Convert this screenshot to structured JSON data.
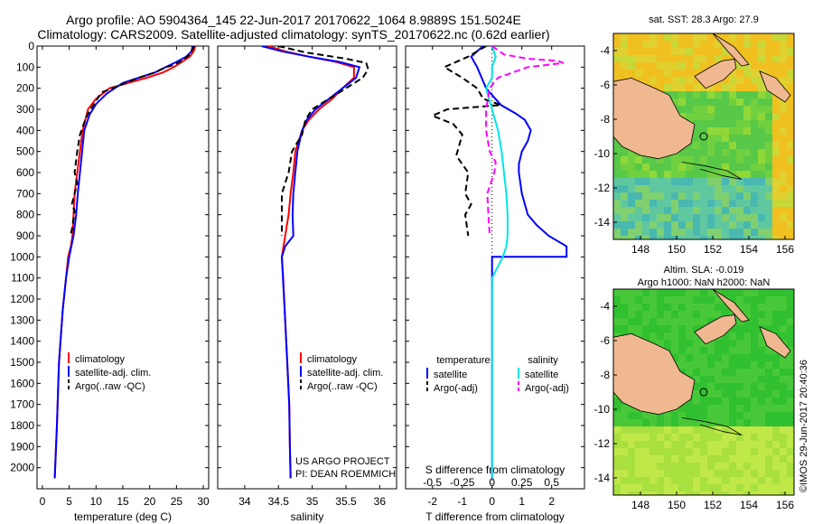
{
  "header": {
    "line1": "Argo profile: AO 5904364_145 22-Jun-2017 20170622_1064 8.9889S 151.5024E",
    "line2": "Climatology: CARS2009. Satellite-adjusted climatology: synTS_20170622.nc (0.62d earlier)"
  },
  "colors": {
    "climatology": "#ff0000",
    "satellite": "#0000ff",
    "argo": "#000000",
    "sal_satellite": "#00e5e5",
    "sal_argo": "#ff00ff",
    "land": "#f0b890"
  },
  "credits": {
    "project": "US ARGO PROJECT",
    "pi": "PI: DEAN ROEMMICH",
    "imos": "©IMOS 29-Jun-2017 20:40:36"
  },
  "chart_data": [
    {
      "type": "line",
      "name": "temperature-profile",
      "xlabel": "temperature (deg C)",
      "ylabel": "",
      "xlim": [
        -1,
        31
      ],
      "ylim": [
        2100,
        0
      ],
      "xticks": [
        0,
        5,
        10,
        15,
        20,
        25,
        30
      ],
      "yticks": [
        0,
        100,
        200,
        300,
        400,
        500,
        600,
        700,
        800,
        900,
        1000,
        1100,
        1200,
        1300,
        1400,
        1500,
        1600,
        1700,
        1800,
        1900,
        2000
      ],
      "legend": [
        "climatology",
        "satellite-adj. clim.",
        "Argo(..raw -QC)"
      ],
      "series": [
        {
          "name": "climatology",
          "color": "#ff0000",
          "dash": "",
          "x": [
            28.5,
            28.2,
            27.5,
            26,
            24.5,
            22.5,
            19.5,
            16,
            12.5,
            10,
            8.5,
            7.5,
            7,
            6.5,
            6,
            5.8,
            5.6,
            5.3,
            4.8,
            4.4,
            3.8,
            3.1,
            2.7,
            2.3
          ],
          "y": [
            0,
            25,
            50,
            75,
            100,
            125,
            150,
            175,
            200,
            250,
            300,
            400,
            500,
            600,
            700,
            800,
            900,
            950,
            1000,
            1100,
            1250,
            1500,
            1800,
            2050
          ]
        },
        {
          "name": "satellite",
          "color": "#0000ff",
          "dash": "",
          "x": [
            28.0,
            27.8,
            26.8,
            25,
            23,
            21,
            18,
            15,
            12,
            10,
            8.8,
            7.8,
            7.4,
            7.0,
            6.6,
            6.3,
            5.8,
            5.0,
            4.4,
            3.8,
            3.1,
            2.7,
            2.3
          ],
          "y": [
            0,
            25,
            50,
            75,
            100,
            125,
            150,
            175,
            225,
            275,
            325,
            400,
            500,
            600,
            700,
            800,
            900,
            1000,
            1100,
            1250,
            1500,
            1800,
            2050
          ]
        },
        {
          "name": "argo",
          "color": "#000000",
          "dash": "7,4",
          "x": [
            28.3,
            27.5,
            26,
            24.5,
            23,
            21,
            18,
            16,
            13,
            11,
            10,
            9,
            8.5,
            8,
            7,
            6.5,
            6,
            6.5,
            6,
            5.5,
            6,
            5.8,
            5.5,
            5.2
          ],
          "y": [
            0,
            40,
            70,
            90,
            100,
            125,
            150,
            170,
            200,
            220,
            260,
            300,
            320,
            350,
            420,
            500,
            600,
            650,
            700,
            750,
            780,
            820,
            870,
            900
          ]
        }
      ]
    },
    {
      "type": "line",
      "name": "salinity-profile",
      "xlabel": "salinity",
      "ylabel": "",
      "xlim": [
        33.6,
        36.25
      ],
      "ylim": [
        2100,
        0
      ],
      "xticks": [
        34,
        34.5,
        35,
        35.5,
        36
      ],
      "xticklabels": [
        "34",
        "34.5",
        "35",
        "35.5",
        "36"
      ],
      "legend": [
        "climatology",
        "satellite-adj. clim.",
        "Argo(..raw -QC)"
      ],
      "series": [
        {
          "name": "climatology",
          "color": "#ff0000",
          "dash": "",
          "x": [
            34.35,
            34.6,
            34.95,
            35.35,
            35.62,
            35.62,
            35.45,
            35.3,
            35.1,
            34.95,
            34.85,
            34.75,
            34.72,
            34.68,
            34.65,
            34.6,
            34.55,
            34.57,
            34.6,
            34.63,
            34.66,
            34.67,
            34.68
          ],
          "y": [
            0,
            25,
            50,
            75,
            100,
            150,
            200,
            250,
            300,
            350,
            400,
            500,
            600,
            700,
            800,
            900,
            1000,
            1100,
            1300,
            1500,
            1700,
            1900,
            2050
          ]
        },
        {
          "name": "satellite",
          "color": "#0000ff",
          "dash": "",
          "x": [
            34.25,
            34.55,
            34.95,
            35.4,
            35.7,
            35.65,
            35.45,
            35.25,
            35.05,
            34.92,
            34.85,
            34.78,
            34.75,
            34.72,
            34.71,
            34.72,
            34.6,
            34.55,
            34.6,
            34.63,
            34.66,
            34.67,
            34.68
          ],
          "y": [
            0,
            25,
            50,
            75,
            100,
            150,
            200,
            250,
            300,
            350,
            400,
            500,
            600,
            700,
            800,
            900,
            950,
            1000,
            1300,
            1500,
            1700,
            1900,
            2050
          ]
        },
        {
          "name": "argo",
          "color": "#000000",
          "dash": "7,4",
          "x": [
            34.5,
            34.9,
            35.5,
            35.8,
            35.83,
            35.75,
            35.5,
            35.25,
            35.0,
            34.9,
            34.85,
            34.7,
            34.65,
            34.6,
            34.55,
            34.55,
            34.55,
            34.55
          ],
          "y": [
            0,
            30,
            60,
            80,
            110,
            150,
            200,
            250,
            300,
            350,
            420,
            500,
            600,
            650,
            700,
            750,
            800,
            900
          ]
        }
      ]
    },
    {
      "type": "line",
      "name": "difference-profile",
      "xlabel": "T difference from climatology",
      "xlabel2": "S difference from climatology",
      "xlim": [
        -2.9,
        3.1
      ],
      "xlim_salinity": [
        -0.725,
        0.775
      ],
      "ylim": [
        2100,
        0
      ],
      "xticks": [
        -2,
        -1,
        0,
        1,
        2
      ],
      "xticks_salinity": [
        -0.5,
        -0.25,
        0,
        0.25,
        0.5
      ],
      "xticklabels_salinity": [
        "-0.5",
        "-0.25",
        "0",
        "0.25",
        "0.5"
      ],
      "legend_temperature_title": "temperature",
      "legend_salinity_title": "salinity",
      "legend": [
        "satellite",
        "Argo(-adj)",
        "satellite",
        "Argo(-adj)"
      ],
      "series": [
        {
          "name": "T satellite",
          "color": "#0000ff",
          "dash": "",
          "x": [
            -0.3,
            -0.5,
            -0.7,
            -0.5,
            -0.2,
            0.3,
            0.8,
            1.1,
            1.3,
            1.2,
            1.0,
            0.9,
            0.9,
            1.0,
            1.2,
            1.5,
            1.9,
            2.5,
            2.5,
            0.0,
            0.0,
            0.0,
            0.0,
            0.0
          ],
          "y": [
            0,
            25,
            50,
            100,
            200,
            280,
            320,
            350,
            400,
            450,
            500,
            560,
            600,
            700,
            800,
            850,
            900,
            950,
            1000,
            1000,
            1200,
            1500,
            1800,
            2050
          ]
        },
        {
          "name": "T argo",
          "color": "#000000",
          "dash": "7,4",
          "x": [
            -0.2,
            -0.8,
            -1.6,
            -1.0,
            -0.5,
            -0.3,
            0.3,
            -1.5,
            -2.0,
            -1.3,
            -1.0,
            -1.2,
            -0.8,
            -0.9,
            -0.7,
            -0.9,
            -0.8
          ],
          "y": [
            0,
            50,
            100,
            150,
            200,
            250,
            280,
            300,
            330,
            370,
            420,
            520,
            600,
            700,
            750,
            800,
            900
          ]
        },
        {
          "name": "S satellite",
          "color": "#00e5e5",
          "dash": "",
          "x": [
            0.0,
            0.03,
            0.0,
            0.0,
            -0.05,
            0.0,
            0.05,
            0.08,
            0.1,
            0.12,
            0.13,
            0.13,
            0.12,
            0.09,
            0.0,
            0.0,
            0.0,
            0.0
          ],
          "y": [
            0,
            50,
            100,
            150,
            200,
            300,
            400,
            500,
            600,
            700,
            800,
            900,
            950,
            1000,
            1100,
            1300,
            1600,
            2050
          ]
        },
        {
          "name": "S argo",
          "color": "#ff00ff",
          "dash": "7,4",
          "x": [
            0.0,
            0.1,
            0.3,
            0.55,
            0.6,
            0.3,
            0.05,
            -0.02,
            -0.05,
            -0.05,
            -0.02,
            0.03,
            0.02,
            -0.04,
            -0.03,
            -0.02
          ],
          "y": [
            0,
            40,
            60,
            70,
            80,
            100,
            150,
            200,
            300,
            400,
            500,
            550,
            600,
            700,
            800,
            900
          ]
        }
      ],
      "zero_line": true
    },
    {
      "type": "heatmap",
      "name": "sst-map",
      "title": "sat. SST: 28.3 Argo: 27.9",
      "xlim": [
        146.5,
        156.5
      ],
      "ylim": [
        -15,
        -3
      ],
      "xticks": [
        148,
        150,
        152,
        154,
        156
      ],
      "yticks": [
        -4,
        -6,
        -8,
        -10,
        -12,
        -14
      ],
      "argo_position": [
        151.5,
        -9.0
      ]
    },
    {
      "type": "heatmap",
      "name": "sla-map",
      "title": "Altim. SLA: -0.019",
      "subtitle": "Argo h1000: NaN h2000: NaN",
      "xlim": [
        146.5,
        156.5
      ],
      "ylim": [
        -15,
        -3
      ],
      "xticks": [
        148,
        150,
        152,
        154,
        156
      ],
      "yticks": [
        -4,
        -6,
        -8,
        -10,
        -12,
        -14
      ],
      "argo_position": [
        151.5,
        -9.0
      ]
    }
  ]
}
